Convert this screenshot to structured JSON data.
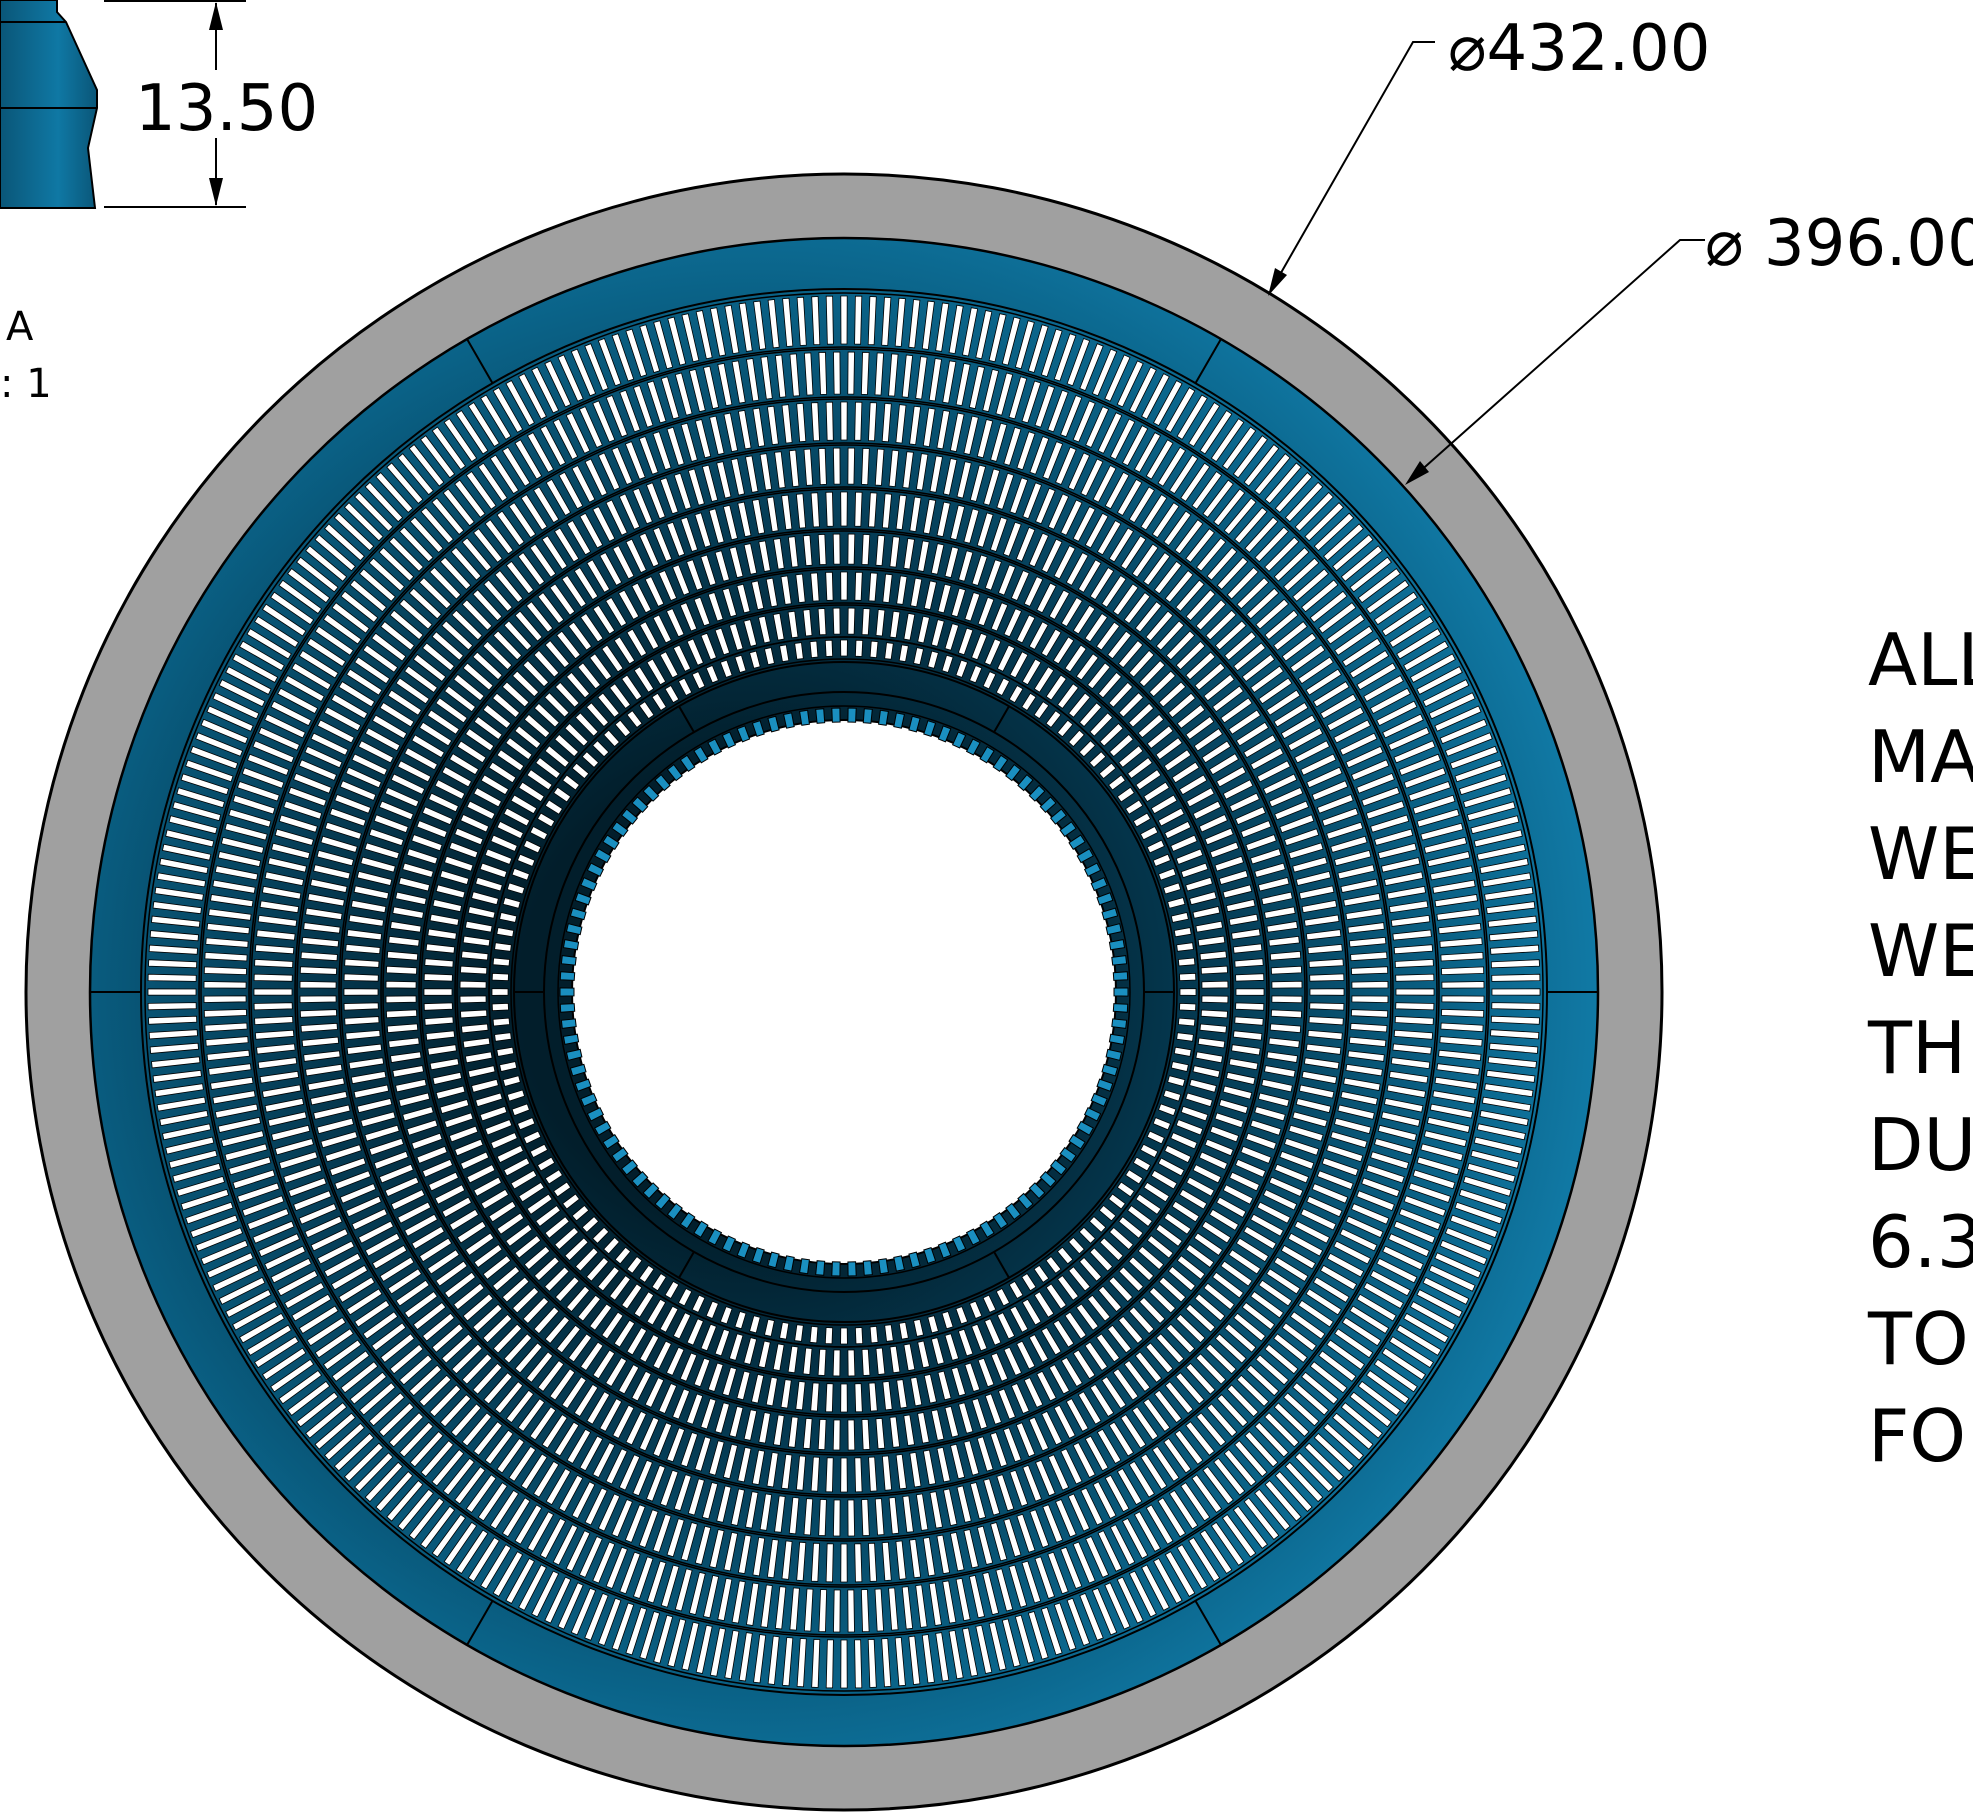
{
  "dimensions": {
    "outer_diameter": "⌀432.00",
    "inner_diameter": "⌀ 396.00",
    "thickness": "13.50"
  },
  "view_label": {
    "line1": "A",
    "line2": ": 1"
  },
  "notes": [
    "ALL",
    "MA",
    "WE",
    "WE",
    "TH",
    "DU",
    "6.3",
    "TO",
    "FO"
  ],
  "colors": {
    "outer_ring": "#a0a0a0",
    "blue_light": "#1a8fc0",
    "blue_mid": "#0b6e96",
    "blue_dark": "#053a52",
    "slot": "#ffffff",
    "line": "#000000"
  }
}
